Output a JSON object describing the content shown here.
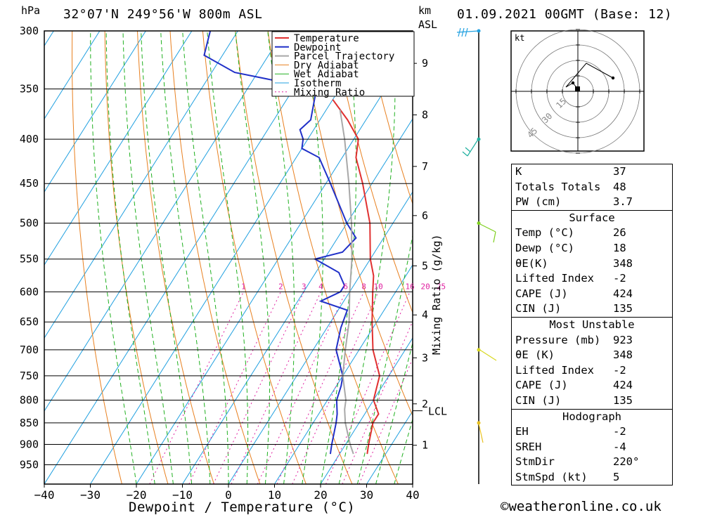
{
  "header": {
    "location": "32°07'N  249°56'W  800m  ASL",
    "datetime": "01.09.2021  00GMT  (Base: 12)",
    "unit_pressure": "hPa",
    "unit_km": "km",
    "unit_asl": "ASL"
  },
  "copyright": "©weatheronline.co.uk",
  "colors": {
    "temperature": "#e03030",
    "dewpoint": "#2030c8",
    "parcel": "#a8a8a8",
    "dry_adiabat": "#e88020",
    "wet_adiabat": "#20b020",
    "isotherm": "#20a0e0",
    "mixing_ratio": "#e020a0"
  },
  "chart_data": {
    "type": "skew-t",
    "xlabel": "Dewpoint / Temperature (°C)",
    "ylabel_right": "Mixing Ratio (g/kg)",
    "x_ticks": [
      -40,
      -30,
      -20,
      -10,
      0,
      10,
      20,
      30,
      40
    ],
    "pressure_levels": [
      300,
      350,
      400,
      450,
      500,
      550,
      600,
      650,
      700,
      750,
      800,
      850,
      900,
      950
    ],
    "km_ticks": [
      "1",
      "2",
      "3",
      "4",
      "5",
      "6",
      "7",
      "8",
      "9"
    ],
    "lcl_label": "LCL",
    "mixing_ratio_labels": [
      "1",
      "2",
      "3",
      "4",
      "6",
      "8",
      "10",
      "16",
      "20",
      "25"
    ],
    "legend": [
      "Temperature",
      "Dewpoint",
      "Parcel Trajectory",
      "Dry Adiabat",
      "Wet Adiabat",
      "Isotherm",
      "Mixing Ratio"
    ],
    "series": [
      {
        "name": "Temperature",
        "points": [
          [
            923,
            26
          ],
          [
            900,
            25
          ],
          [
            850,
            23
          ],
          [
            830,
            23
          ],
          [
            800,
            20
          ],
          [
            750,
            18
          ],
          [
            700,
            13
          ],
          [
            650,
            9
          ],
          [
            600,
            5
          ],
          [
            575,
            3
          ],
          [
            550,
            0
          ],
          [
            500,
            -5
          ],
          [
            450,
            -12
          ],
          [
            420,
            -17
          ],
          [
            400,
            -19
          ],
          [
            380,
            -24
          ],
          [
            360,
            -30
          ]
        ]
      },
      {
        "name": "Dewpoint",
        "points": [
          [
            923,
            18
          ],
          [
            900,
            17
          ],
          [
            850,
            15
          ],
          [
            830,
            14
          ],
          [
            800,
            12
          ],
          [
            770,
            11
          ],
          [
            750,
            10
          ],
          [
            700,
            5
          ],
          [
            660,
            3
          ],
          [
            630,
            2
          ],
          [
            615,
            -5
          ],
          [
            600,
            -2
          ],
          [
            590,
            -2
          ],
          [
            570,
            -5
          ],
          [
            550,
            -12
          ],
          [
            540,
            -7
          ],
          [
            520,
            -6
          ],
          [
            500,
            -10
          ],
          [
            450,
            -19
          ],
          [
            420,
            -25
          ],
          [
            410,
            -30
          ],
          [
            400,
            -31
          ],
          [
            390,
            -33
          ],
          [
            380,
            -32
          ],
          [
            350,
            -35
          ],
          [
            335,
            -55
          ],
          [
            320,
            -64
          ],
          [
            300,
            -66
          ]
        ]
      },
      {
        "name": "Parcel Trajectory",
        "points": [
          [
            923,
            23
          ],
          [
            900,
            21
          ],
          [
            850,
            17
          ],
          [
            820,
            15
          ],
          [
            800,
            14
          ],
          [
            750,
            10
          ],
          [
            700,
            7
          ],
          [
            650,
            4
          ],
          [
            600,
            0
          ],
          [
            550,
            -4
          ],
          [
            500,
            -9
          ],
          [
            450,
            -15
          ],
          [
            400,
            -22
          ],
          [
            370,
            -27
          ]
        ]
      }
    ],
    "hodograph": {
      "unit": "kt",
      "rings": [
        "15",
        "30",
        "45"
      ]
    }
  },
  "stats": {
    "indices": [
      {
        "label": "K",
        "value": "37"
      },
      {
        "label": "Totals Totals",
        "value": "48"
      },
      {
        "label": "PW (cm)",
        "value": "3.7"
      }
    ],
    "surface": {
      "title": "Surface",
      "rows": [
        {
          "label": "Temp (°C)",
          "value": "26"
        },
        {
          "label": "Dewp (°C)",
          "value": "18"
        },
        {
          "label": "θE(K)",
          "value": "348"
        },
        {
          "label": "Lifted Index",
          "value": "-2"
        },
        {
          "label": "CAPE (J)",
          "value": "424"
        },
        {
          "label": "CIN (J)",
          "value": "135"
        }
      ]
    },
    "most_unstable": {
      "title": "Most Unstable",
      "rows": [
        {
          "label": "Pressure (mb)",
          "value": "923"
        },
        {
          "label": "θE (K)",
          "value": "348"
        },
        {
          "label": "Lifted Index",
          "value": "-2"
        },
        {
          "label": "CAPE (J)",
          "value": "424"
        },
        {
          "label": "CIN (J)",
          "value": "135"
        }
      ]
    },
    "hodograph": {
      "title": "Hodograph",
      "rows": [
        {
          "label": "EH",
          "value": "-2"
        },
        {
          "label": "SREH",
          "value": "-4"
        },
        {
          "label": "StmDir",
          "value": "220°"
        },
        {
          "label": "StmSpd (kt)",
          "value": "5"
        }
      ]
    }
  }
}
